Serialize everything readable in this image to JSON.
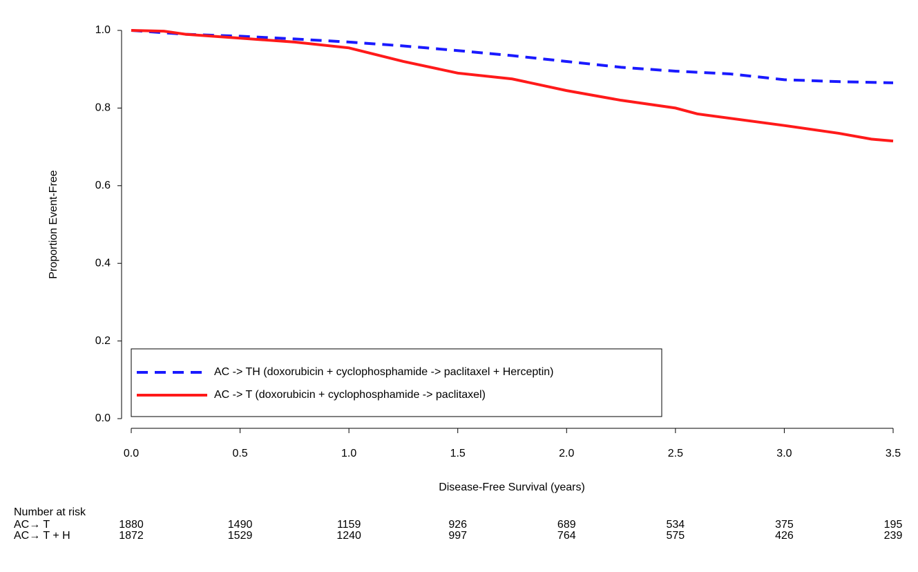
{
  "chart_data": {
    "type": "line",
    "xlabel": "Disease-Free Survival (years)",
    "ylabel": "Proportion Event-Free",
    "xlim": [
      0,
      3.5
    ],
    "ylim": [
      0,
      1
    ],
    "xticks": [
      {
        "value": 0,
        "label": "0.0"
      },
      0.5,
      {
        "value": 1,
        "label": "1.0"
      },
      1.5,
      {
        "value": 2,
        "label": "2.0"
      },
      2.5,
      {
        "value": 3,
        "label": "3.0"
      },
      3.5
    ],
    "yticks": [
      {
        "value": 0,
        "label": "0.0"
      },
      0.2,
      0.4,
      0.6,
      0.8,
      {
        "value": 1,
        "label": "1.0"
      }
    ],
    "legend": "lower left",
    "series": [
      {
        "name": "AC -> TH (doxorubicin + cyclophosphamide -> paclitaxel + Herceptin)",
        "color": "#1a1aff",
        "dash": true,
        "x": [
          0,
          0.25,
          0.5,
          0.75,
          1.0,
          1.25,
          1.5,
          1.75,
          2.0,
          2.25,
          2.5,
          2.75,
          3.0,
          3.25,
          3.5
        ],
        "values": [
          1.0,
          0.99,
          0.985,
          0.978,
          0.97,
          0.96,
          0.948,
          0.935,
          0.92,
          0.905,
          0.895,
          0.888,
          0.873,
          0.868,
          0.865
        ]
      },
      {
        "name": "AC -> T (doxorubicin + cyclophosphamide -> paclitaxel)",
        "color": "#ff1a1a",
        "dash": false,
        "x": [
          0,
          0.15,
          0.25,
          0.5,
          0.75,
          1.0,
          1.25,
          1.5,
          1.75,
          2.0,
          2.25,
          2.5,
          2.6,
          3.0,
          3.25,
          3.4,
          3.5
        ],
        "values": [
          1.0,
          0.998,
          0.99,
          0.98,
          0.97,
          0.955,
          0.92,
          0.89,
          0.875,
          0.845,
          0.82,
          0.8,
          0.785,
          0.755,
          0.735,
          0.72,
          0.715
        ]
      }
    ],
    "risk_table": {
      "title": "Number at risk",
      "rows": [
        {
          "label": "AC→ T",
          "values": [
            1880,
            1490,
            1159,
            926,
            689,
            534,
            375,
            195
          ]
        },
        {
          "label": "AC→ T + H",
          "values": [
            1872,
            1529,
            1240,
            997,
            764,
            575,
            426,
            239
          ]
        }
      ]
    }
  }
}
